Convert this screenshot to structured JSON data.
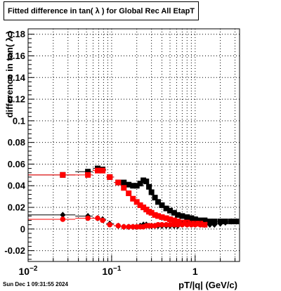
{
  "chart_data": {
    "type": "scatter",
    "title": "Fitted difference in tan( λ ) for Global Rec All EtapT",
    "xlabel": "pT/|q| (GeV/c)",
    "ylabel": "difference in tan( λ )",
    "x_scale": "log",
    "xlim": [
      0.01,
      3.4
    ],
    "ylim": [
      -0.03,
      0.185
    ],
    "grid": true,
    "y_ticks": [
      "-0.02",
      "0",
      "0.02",
      "0.04",
      "0.06",
      "0.08",
      "0.1",
      "0.12",
      "0.14",
      "0.16",
      "0.18"
    ],
    "x_tick_labels": [
      {
        "value": 0.01,
        "label": "10",
        "sup": "−2"
      },
      {
        "value": 0.1,
        "label": "10",
        "sup": "−1"
      },
      {
        "value": 1,
        "label": "1",
        "sup": ""
      }
    ],
    "series": [
      {
        "marker": "square",
        "color": "#000000",
        "points": [
          [
            0.026,
            0.05
          ],
          [
            0.052,
            0.053
          ],
          [
            0.068,
            0.056
          ],
          [
            0.078,
            0.055
          ],
          [
            0.095,
            0.048
          ],
          [
            0.12,
            0.043
          ],
          [
            0.14,
            0.043
          ],
          [
            0.16,
            0.041
          ],
          [
            0.18,
            0.04
          ],
          [
            0.2,
            0.04
          ],
          [
            0.22,
            0.042
          ],
          [
            0.24,
            0.045
          ],
          [
            0.26,
            0.044
          ],
          [
            0.28,
            0.039
          ],
          [
            0.3,
            0.034
          ],
          [
            0.33,
            0.029
          ],
          [
            0.36,
            0.025
          ],
          [
            0.4,
            0.022
          ],
          [
            0.45,
            0.019
          ],
          [
            0.5,
            0.017
          ],
          [
            0.56,
            0.015
          ],
          [
            0.62,
            0.013
          ],
          [
            0.7,
            0.012
          ],
          [
            0.8,
            0.011
          ],
          [
            0.9,
            0.01
          ],
          [
            1.0,
            0.009
          ],
          [
            1.15,
            0.008
          ],
          [
            1.3,
            0.008
          ],
          [
            1.5,
            0.007
          ],
          [
            1.7,
            0.007
          ],
          [
            2.0,
            0.007
          ],
          [
            2.3,
            0.007
          ],
          [
            2.7,
            0.007
          ],
          [
            3.1,
            0.007
          ]
        ]
      },
      {
        "marker": "square",
        "color": "#ff0000",
        "points": [
          [
            0.026,
            0.05
          ],
          [
            0.052,
            0.05
          ],
          [
            0.068,
            0.054
          ],
          [
            0.078,
            0.054
          ],
          [
            0.095,
            0.048
          ],
          [
            0.12,
            0.043
          ],
          [
            0.14,
            0.038
          ],
          [
            0.16,
            0.033
          ],
          [
            0.18,
            0.028
          ],
          [
            0.2,
            0.025
          ],
          [
            0.22,
            0.022
          ],
          [
            0.24,
            0.02
          ],
          [
            0.26,
            0.018
          ],
          [
            0.28,
            0.016
          ],
          [
            0.3,
            0.015
          ],
          [
            0.33,
            0.013
          ],
          [
            0.36,
            0.012
          ],
          [
            0.4,
            0.011
          ],
          [
            0.45,
            0.01
          ],
          [
            0.5,
            0.009
          ],
          [
            0.56,
            0.008
          ],
          [
            0.62,
            0.007
          ],
          [
            0.7,
            0.006
          ],
          [
            0.8,
            0.006
          ],
          [
            0.9,
            0.005
          ],
          [
            1.0,
            0.005
          ],
          [
            1.15,
            0.005
          ],
          [
            1.3,
            0.004
          ]
        ]
      },
      {
        "marker": "diamond",
        "color": "#000000",
        "points": [
          [
            0.026,
            0.013
          ],
          [
            0.052,
            0.012
          ],
          [
            0.068,
            0.01
          ],
          [
            0.078,
            0.009
          ],
          [
            0.095,
            0.005
          ],
          [
            0.12,
            0.003
          ],
          [
            0.14,
            0.002
          ],
          [
            0.16,
            0.002
          ],
          [
            0.18,
            0.002
          ],
          [
            0.2,
            0.002
          ],
          [
            0.22,
            0.003
          ],
          [
            0.24,
            0.004
          ],
          [
            0.26,
            0.004
          ],
          [
            0.28,
            0.003
          ],
          [
            0.3,
            0.003
          ],
          [
            0.33,
            0.003
          ],
          [
            0.36,
            0.003
          ],
          [
            0.4,
            0.003
          ],
          [
            0.45,
            0.003
          ],
          [
            0.5,
            0.003
          ],
          [
            0.56,
            0.003
          ],
          [
            0.62,
            0.003
          ],
          [
            0.7,
            0.004
          ],
          [
            0.8,
            0.004
          ],
          [
            0.9,
            0.004
          ],
          [
            1.0,
            0.004
          ],
          [
            1.15,
            0.004
          ],
          [
            1.3,
            0.004
          ],
          [
            1.5,
            0.004
          ],
          [
            1.7,
            0.004
          ],
          [
            2.0,
            0.005
          ],
          [
            2.3,
            0.006
          ],
          [
            2.7,
            0.007
          ],
          [
            3.1,
            0.007
          ]
        ]
      },
      {
        "marker": "circle",
        "color": "#ff0000",
        "points": [
          [
            0.026,
            0.009
          ],
          [
            0.052,
            0.01
          ],
          [
            0.068,
            0.01
          ],
          [
            0.078,
            0.008
          ],
          [
            0.095,
            0.004
          ],
          [
            0.12,
            0.003
          ],
          [
            0.14,
            0.002
          ],
          [
            0.16,
            0.002
          ],
          [
            0.18,
            0.002
          ],
          [
            0.2,
            0.002
          ],
          [
            0.22,
            0.002
          ],
          [
            0.24,
            0.002
          ],
          [
            0.26,
            0.003
          ],
          [
            0.28,
            0.003
          ],
          [
            0.3,
            0.003
          ],
          [
            0.33,
            0.003
          ],
          [
            0.36,
            0.004
          ],
          [
            0.4,
            0.004
          ],
          [
            0.45,
            0.004
          ],
          [
            0.5,
            0.004
          ],
          [
            0.56,
            0.004
          ],
          [
            0.62,
            0.004
          ],
          [
            0.7,
            0.004
          ],
          [
            0.8,
            0.004
          ],
          [
            0.9,
            0.004
          ],
          [
            1.0,
            0.004
          ],
          [
            1.15,
            0.004
          ],
          [
            1.3,
            0.004
          ]
        ]
      }
    ]
  },
  "timestamp": "Sun Dec  1 09:31:55 2024"
}
